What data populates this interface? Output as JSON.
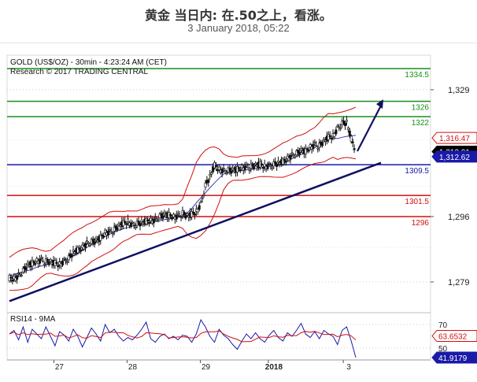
{
  "header": {
    "title": "黄金 当日内: 在.50之上，看涨。",
    "subtitle": "3 January 2018, 05:22"
  },
  "chart_data": {
    "type": "line",
    "instrument": "GOLD (US$/OZ) - 30min - 4:23:24 AM (CET)",
    "provider": "Research © 2017 TRADING CENTRAL",
    "price_axis": {
      "ticks": [
        1279,
        1296,
        1329
      ],
      "ylim": [
        1271,
        1338
      ]
    },
    "levels": [
      {
        "label": "1334.5",
        "value": 1334.5,
        "color": "#1a8f1a"
      },
      {
        "label": "1326",
        "value": 1326,
        "color": "#1a8f1a"
      },
      {
        "label": "1322",
        "value": 1322,
        "color": "#1a8f1a"
      },
      {
        "label": "1309.5",
        "value": 1309.5,
        "color": "#1a1aa8"
      },
      {
        "label": "1301.5",
        "value": 1301.5,
        "color": "#d01010"
      },
      {
        "label": "1296",
        "value": 1296,
        "color": "#d01010"
      }
    ],
    "price_badges": [
      {
        "label": "1,316.47",
        "value": 1316.47,
        "color": "#d01010"
      },
      {
        "label": "1,313.01",
        "value": 1313.01,
        "color": "#000000"
      },
      {
        "label": "1,312.62",
        "value": 1312.62,
        "color": "#1a1aa8"
      }
    ],
    "x_axis": {
      "labels": [
        "27",
        "28",
        "29",
        "2018",
        "3"
      ],
      "label_positions": [
        0.15,
        0.36,
        0.57,
        0.765,
        0.98
      ]
    },
    "price_series": [
      1280.0,
      1279.8,
      1280.6,
      1281.9,
      1283.2,
      1283.8,
      1284.4,
      1284.6,
      1284.3,
      1284.1,
      1283.9,
      1283.5,
      1284.4,
      1285.1,
      1286.6,
      1287.3,
      1287.9,
      1289.0,
      1289.4,
      1289.5,
      1290.5,
      1291.8,
      1291.9,
      1292.6,
      1293.5,
      1294.3,
      1294.7,
      1293.8,
      1294.1,
      1294.3,
      1294.8,
      1294.9,
      1295.1,
      1296.0,
      1296.3,
      1296.4,
      1295.9,
      1296.1,
      1296.8,
      1296.0,
      1296.6,
      1297.3,
      1299.2,
      1304.0,
      1306.3,
      1309.4,
      1308.2,
      1307.9,
      1308.0,
      1307.9,
      1308.3,
      1308.7,
      1308.8,
      1309.0,
      1309.2,
      1309.6,
      1309.0,
      1309.2,
      1309.5,
      1309.8,
      1310.3,
      1311.0,
      1311.9,
      1312.4,
      1313.0,
      1313.0,
      1314.0,
      1314.6,
      1314.4,
      1315.5,
      1316.7,
      1316.9,
      1318.9,
      1320.2,
      1320.4,
      1316.2,
      1313.0
    ],
    "trendline": {
      "from": 1274.0,
      "to": 1310.0
    },
    "forecast_arrow": {
      "from": 1313.0,
      "to": 1326.5
    },
    "rsi": {
      "label": "RSI14 - 9MA",
      "ylim": [
        40,
        80
      ],
      "ticks": [
        50,
        70
      ],
      "badges": [
        {
          "label": "63.6532",
          "value": 63.6532,
          "color": "#d01010"
        },
        {
          "label": "41.9179",
          "value": 41.9179,
          "color": "#1a1aa8"
        }
      ],
      "values": [
        62,
        65,
        57,
        68,
        55,
        66,
        62,
        58,
        68,
        60,
        52,
        64,
        61,
        56,
        66,
        60,
        51,
        59,
        67,
        62,
        56,
        70,
        63,
        66,
        60,
        56,
        59,
        57,
        61,
        66,
        72,
        58,
        55,
        60,
        62,
        58,
        60,
        57,
        61,
        60,
        55,
        62,
        74,
        68,
        60,
        55,
        66,
        61,
        58,
        53,
        49,
        56,
        62,
        58,
        63,
        58,
        55,
        61,
        65,
        59,
        56,
        63,
        60,
        65,
        71,
        62,
        59,
        64,
        58,
        65,
        62,
        60,
        53,
        65,
        68,
        56,
        42
      ]
    }
  }
}
